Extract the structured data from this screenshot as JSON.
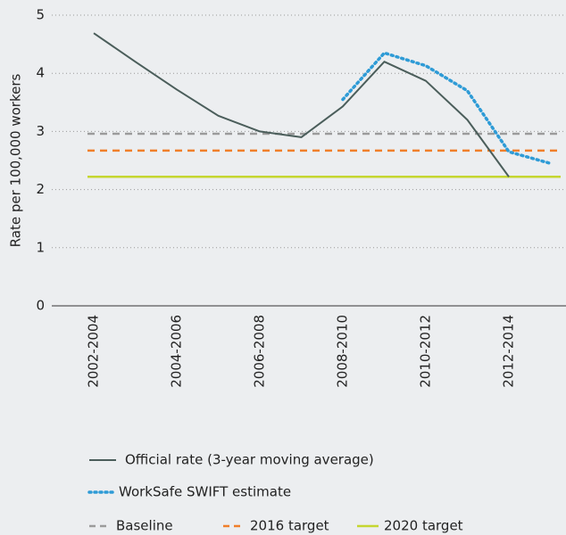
{
  "chart_data": {
    "type": "line",
    "y_label": "Rate per 100,000 workers",
    "categories": [
      "2002-2004",
      null,
      "2004-2006",
      null,
      "2006-2008",
      null,
      "2008-2010",
      null,
      "2010-2012",
      null,
      "2012-2014",
      null
    ],
    "series": [
      {
        "name": "Official rate (3-year moving average)",
        "color": "#4b5e5b",
        "style": "solid",
        "values": [
          4.69,
          4.2,
          3.72,
          3.27,
          3.0,
          2.9,
          3.43,
          4.2,
          3.87,
          3.2,
          2.22,
          null
        ]
      },
      {
        "name": "WorkSafe SWIFT estimate",
        "color": "#2e9bd6",
        "style": "dotted",
        "values": [
          null,
          null,
          null,
          null,
          null,
          null,
          3.55,
          4.35,
          4.13,
          3.7,
          2.65,
          2.45
        ]
      }
    ],
    "reference_lines": [
      {
        "name": "Baseline",
        "color": "#9b9b9b",
        "style": "dashed",
        "value": 2.96
      },
      {
        "name": "2016 target",
        "color": "#f07f2a",
        "style": "dashed",
        "value": 2.67
      },
      {
        "name": "2020 target",
        "color": "#c5d630",
        "style": "solid",
        "value": 2.22
      }
    ],
    "ylim": [
      0,
      5
    ],
    "yticks": [
      0,
      1,
      2,
      3,
      4,
      5
    ],
    "grid": true
  }
}
